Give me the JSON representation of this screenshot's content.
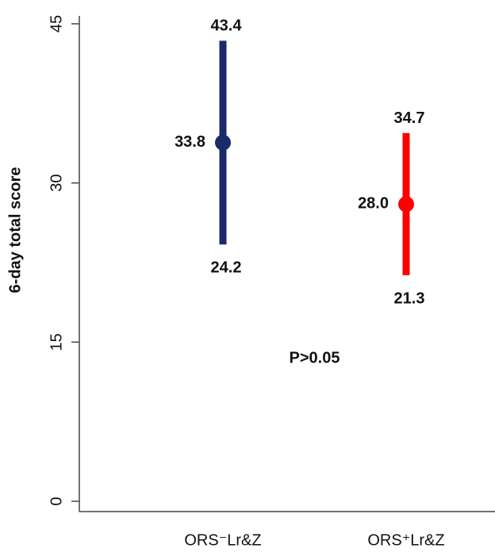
{
  "chart_data": {
    "type": "errorbar",
    "y_label": "6-day total score",
    "categories": [
      "ORS⁻Lr&Z",
      "ORS⁺Lr&Z"
    ],
    "values": [
      33.8,
      28.0
    ],
    "value_labels": [
      "33.8",
      "28.0"
    ],
    "lower": [
      24.2,
      21.3
    ],
    "upper": [
      43.4,
      34.7
    ],
    "colors": [
      "#1b2a6b",
      "#ff0000"
    ],
    "annotation": "P>0.05",
    "ylim": [
      0,
      45
    ],
    "yticks": [
      0,
      15,
      30,
      45
    ]
  }
}
